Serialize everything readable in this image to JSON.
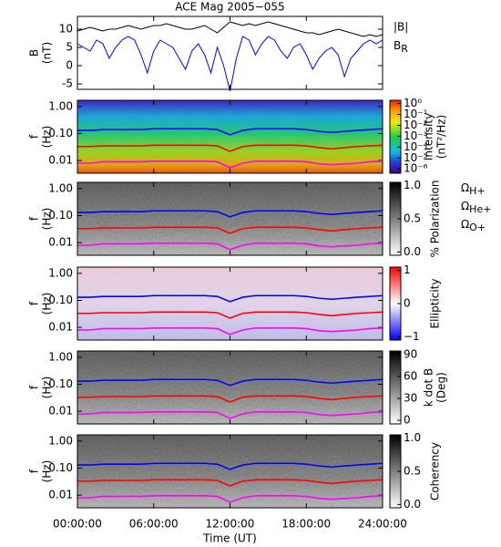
{
  "chart_data": [
    {
      "type": "line",
      "title": "ACE Mag 2005−055",
      "ylabel": [
        "B",
        "(nT)"
      ],
      "xlim": [
        0,
        24
      ],
      "xticks": [
        0,
        6,
        12,
        18,
        24
      ],
      "ylim": [
        -6.5,
        13.5
      ],
      "yticks": [
        -5,
        0,
        5,
        10
      ],
      "log_y": false,
      "x": [
        0,
        0.5,
        1,
        1.5,
        2,
        2.5,
        3,
        3.5,
        4,
        4.5,
        5,
        5.5,
        6,
        6.5,
        7,
        7.5,
        8,
        8.5,
        9,
        9.5,
        10,
        10.5,
        11,
        11.5,
        12,
        12.5,
        13,
        13.5,
        14,
        14.5,
        15,
        15.5,
        16,
        16.5,
        17,
        17.5,
        18,
        18.5,
        19,
        19.5,
        20,
        20.5,
        21,
        21.5,
        22,
        22.5,
        23,
        23.5,
        24
      ],
      "series": [
        {
          "name": "|B|",
          "color": "#000000",
          "values": [
            9.5,
            10,
            10.5,
            10,
            9.5,
            10,
            10,
            10.5,
            11,
            10.5,
            10,
            10.5,
            11,
            11,
            11.5,
            11,
            10.5,
            10,
            10,
            10.5,
            11,
            10,
            9,
            10.5,
            12,
            11.5,
            11,
            11.5,
            11,
            11.5,
            12,
            11.5,
            11,
            10.5,
            10,
            9.5,
            9,
            9,
            8.5,
            9,
            9.5,
            10,
            9.5,
            9,
            8.5,
            8,
            8.5,
            8,
            8.5
          ]
        },
        {
          "name": "BR",
          "color": "#0000ff",
          "values": [
            6,
            5,
            4,
            7,
            6,
            2,
            5,
            7,
            8,
            7,
            3,
            -2,
            4,
            7,
            6,
            5,
            2,
            -1,
            4,
            6,
            3,
            -2,
            5,
            0,
            -7,
            2,
            8,
            7,
            3,
            6,
            8,
            7,
            4,
            2,
            5,
            6,
            3,
            -1,
            2,
            4,
            5,
            3,
            -3,
            2,
            4,
            6,
            7,
            6,
            7
          ]
        }
      ]
    },
    {
      "type": "spectrogram",
      "colormap": "rainbow",
      "ylabel": [
        "f",
        "(Hz)"
      ],
      "xlim": [
        0,
        24
      ],
      "xticks": [
        0,
        6,
        12,
        18,
        24
      ],
      "ylim": [
        0.0034,
        1.7
      ],
      "log_y": true,
      "yticks": [
        {
          "value": 1,
          "label": "1.00"
        },
        {
          "value": 0.1,
          "label": "0.10"
        },
        {
          "value": 0.01,
          "label": "0.01"
        }
      ],
      "colorbar": {
        "label": [
          "Intensity",
          "(nT²/Hz)"
        ],
        "log": true,
        "lim": [
          4e-07,
          2
        ],
        "ticks": [
          {
            "value": 1,
            "label": "10⁰"
          },
          {
            "value": 0.1,
            "label": "10⁻¹"
          },
          {
            "value": 0.01,
            "label": "10⁻²"
          },
          {
            "value": 0.001,
            "label": "10⁻³"
          },
          {
            "value": 0.0001,
            "label": "10⁻⁴"
          },
          {
            "value": 1e-05,
            "label": "10⁻⁵"
          },
          {
            "value": 1e-06,
            "label": "10⁻⁶"
          }
        ]
      },
      "x": [
        0,
        1,
        2,
        3,
        4,
        5,
        6,
        7,
        8,
        9,
        10,
        11,
        12,
        13,
        14,
        15,
        16,
        17,
        18,
        19,
        20,
        21,
        22,
        23,
        24
      ],
      "series": [
        {
          "name": "ΩH+",
          "color": "#0000ff",
          "values": [
            0.13,
            0.13,
            0.14,
            0.14,
            0.14,
            0.14,
            0.15,
            0.15,
            0.15,
            0.15,
            0.15,
            0.14,
            0.09,
            0.13,
            0.15,
            0.15,
            0.15,
            0.15,
            0.14,
            0.12,
            0.11,
            0.12,
            0.13,
            0.14,
            0.15
          ]
        },
        {
          "name": "ΩHe+",
          "color": "#ff0000",
          "values": [
            0.033,
            0.033,
            0.035,
            0.035,
            0.035,
            0.035,
            0.037,
            0.037,
            0.037,
            0.037,
            0.037,
            0.035,
            0.022,
            0.033,
            0.037,
            0.037,
            0.037,
            0.037,
            0.035,
            0.03,
            0.027,
            0.03,
            0.033,
            0.035,
            0.037
          ]
        },
        {
          "name": "ΩO+",
          "color": "#ff00ff",
          "values": [
            0.008,
            0.008,
            0.009,
            0.009,
            0.009,
            0.009,
            0.0095,
            0.0095,
            0.0095,
            0.0095,
            0.0095,
            0.009,
            0.0055,
            0.008,
            0.0095,
            0.0095,
            0.0095,
            0.0095,
            0.009,
            0.0075,
            0.007,
            0.0075,
            0.008,
            0.009,
            0.0095
          ]
        }
      ]
    },
    {
      "type": "spectrogram",
      "colormap": "gray",
      "ylabel": [
        "f",
        "(Hz)"
      ],
      "xlim": [
        0,
        24
      ],
      "xticks": [
        0,
        6,
        12,
        18,
        24
      ],
      "ylim": [
        0.0034,
        1.7
      ],
      "log_y": true,
      "yticks": [
        {
          "value": 1,
          "label": "1.00"
        },
        {
          "value": 0.1,
          "label": "0.10"
        },
        {
          "value": 0.01,
          "label": "0.01"
        }
      ],
      "colorbar": {
        "label": [
          "% Polarization"
        ],
        "log": false,
        "lim": [
          -0.05,
          1.05
        ],
        "ticks": [
          {
            "value": 1,
            "label": "1.0"
          },
          {
            "value": 0.5,
            "label": "0.5"
          },
          {
            "value": 0,
            "label": "0.0"
          }
        ]
      },
      "x": [
        0,
        1,
        2,
        3,
        4,
        5,
        6,
        7,
        8,
        9,
        10,
        11,
        12,
        13,
        14,
        15,
        16,
        17,
        18,
        19,
        20,
        21,
        22,
        23,
        24
      ],
      "series": [
        {
          "color": "#0000ff",
          "values": [
            0.13,
            0.13,
            0.14,
            0.14,
            0.14,
            0.14,
            0.15,
            0.15,
            0.15,
            0.15,
            0.15,
            0.14,
            0.09,
            0.13,
            0.15,
            0.15,
            0.15,
            0.15,
            0.14,
            0.12,
            0.11,
            0.12,
            0.13,
            0.14,
            0.15
          ]
        },
        {
          "color": "#ff0000",
          "values": [
            0.033,
            0.033,
            0.035,
            0.035,
            0.035,
            0.035,
            0.037,
            0.037,
            0.037,
            0.037,
            0.037,
            0.035,
            0.022,
            0.033,
            0.037,
            0.037,
            0.037,
            0.037,
            0.035,
            0.03,
            0.027,
            0.03,
            0.033,
            0.035,
            0.037
          ]
        },
        {
          "color": "#ff00ff",
          "values": [
            0.008,
            0.008,
            0.009,
            0.009,
            0.009,
            0.009,
            0.0095,
            0.0095,
            0.0095,
            0.0095,
            0.0095,
            0.009,
            0.0055,
            0.008,
            0.0095,
            0.0095,
            0.0095,
            0.0095,
            0.009,
            0.0075,
            0.007,
            0.0075,
            0.008,
            0.009,
            0.0095
          ]
        }
      ]
    },
    {
      "type": "spectrogram",
      "colormap": "bwr",
      "ylabel": [
        "f",
        "(Hz)"
      ],
      "xlim": [
        0,
        24
      ],
      "xticks": [
        0,
        6,
        12,
        18,
        24
      ],
      "ylim": [
        0.0034,
        1.7
      ],
      "log_y": true,
      "yticks": [
        {
          "value": 1,
          "label": "1.00"
        },
        {
          "value": 0.1,
          "label": "0.10"
        },
        {
          "value": 0.01,
          "label": "0.01"
        }
      ],
      "colorbar": {
        "label": [
          "Ellipticity"
        ],
        "log": false,
        "lim": [
          -1.1,
          1.1
        ],
        "ticks": [
          {
            "value": 1,
            "label": "1"
          },
          {
            "value": 0,
            "label": "0"
          },
          {
            "value": -1,
            "label": "−1"
          }
        ]
      },
      "x": [
        0,
        1,
        2,
        3,
        4,
        5,
        6,
        7,
        8,
        9,
        10,
        11,
        12,
        13,
        14,
        15,
        16,
        17,
        18,
        19,
        20,
        21,
        22,
        23,
        24
      ],
      "series": [
        {
          "color": "#0000ff",
          "values": [
            0.13,
            0.13,
            0.14,
            0.14,
            0.14,
            0.14,
            0.15,
            0.15,
            0.15,
            0.15,
            0.15,
            0.14,
            0.09,
            0.13,
            0.15,
            0.15,
            0.15,
            0.15,
            0.14,
            0.12,
            0.11,
            0.12,
            0.13,
            0.14,
            0.15
          ]
        },
        {
          "color": "#ff0000",
          "values": [
            0.033,
            0.033,
            0.035,
            0.035,
            0.035,
            0.035,
            0.037,
            0.037,
            0.037,
            0.037,
            0.037,
            0.035,
            0.022,
            0.033,
            0.037,
            0.037,
            0.037,
            0.037,
            0.035,
            0.03,
            0.027,
            0.03,
            0.033,
            0.035,
            0.037
          ]
        },
        {
          "color": "#ff00ff",
          "values": [
            0.008,
            0.008,
            0.009,
            0.009,
            0.009,
            0.009,
            0.0095,
            0.0095,
            0.0095,
            0.0095,
            0.0095,
            0.009,
            0.0055,
            0.008,
            0.0095,
            0.0095,
            0.0095,
            0.0095,
            0.009,
            0.0075,
            0.007,
            0.0075,
            0.008,
            0.009,
            0.0095
          ]
        }
      ]
    },
    {
      "type": "spectrogram",
      "colormap": "gray",
      "ylabel": [
        "f",
        "(Hz)"
      ],
      "xlim": [
        0,
        24
      ],
      "xticks": [
        0,
        6,
        12,
        18,
        24
      ],
      "ylim": [
        0.0034,
        1.7
      ],
      "log_y": true,
      "yticks": [
        {
          "value": 1,
          "label": "1.00"
        },
        {
          "value": 0.1,
          "label": "0.10"
        },
        {
          "value": 0.01,
          "label": "0.01"
        }
      ],
      "colorbar": {
        "label": [
          "k dot B",
          "(Deg)"
        ],
        "log": false,
        "lim": [
          -5,
          95
        ],
        "ticks": [
          90,
          60,
          30,
          0
        ]
      },
      "x": [
        0,
        1,
        2,
        3,
        4,
        5,
        6,
        7,
        8,
        9,
        10,
        11,
        12,
        13,
        14,
        15,
        16,
        17,
        18,
        19,
        20,
        21,
        22,
        23,
        24
      ],
      "series": [
        {
          "color": "#0000ff",
          "values": [
            0.13,
            0.13,
            0.14,
            0.14,
            0.14,
            0.14,
            0.15,
            0.15,
            0.15,
            0.15,
            0.15,
            0.14,
            0.09,
            0.13,
            0.15,
            0.15,
            0.15,
            0.15,
            0.14,
            0.12,
            0.11,
            0.12,
            0.13,
            0.14,
            0.15
          ]
        },
        {
          "color": "#ff0000",
          "values": [
            0.033,
            0.033,
            0.035,
            0.035,
            0.035,
            0.035,
            0.037,
            0.037,
            0.037,
            0.037,
            0.037,
            0.035,
            0.022,
            0.033,
            0.037,
            0.037,
            0.037,
            0.037,
            0.035,
            0.03,
            0.027,
            0.03,
            0.033,
            0.035,
            0.037
          ]
        },
        {
          "color": "#ff00ff",
          "values": [
            0.008,
            0.008,
            0.009,
            0.009,
            0.009,
            0.009,
            0.0095,
            0.0095,
            0.0095,
            0.0095,
            0.0095,
            0.009,
            0.0055,
            0.008,
            0.0095,
            0.0095,
            0.0095,
            0.0095,
            0.009,
            0.0075,
            0.007,
            0.0075,
            0.008,
            0.009,
            0.0095
          ]
        }
      ]
    },
    {
      "type": "spectrogram",
      "colormap": "gray",
      "ylabel": [
        "f",
        "(Hz)"
      ],
      "xlabel": "Time (UT)",
      "xlim": [
        0,
        24
      ],
      "xticks": [
        {
          "value": 0,
          "label": "00:00:00"
        },
        {
          "value": 6,
          "label": "06:00:00"
        },
        {
          "value": 12,
          "label": "12:00:00"
        },
        {
          "value": 18,
          "label": "18:00:00"
        },
        {
          "value": 24,
          "label": "24:00:00"
        }
      ],
      "ylim": [
        0.0034,
        1.7
      ],
      "log_y": true,
      "yticks": [
        {
          "value": 1,
          "label": "1.00"
        },
        {
          "value": 0.1,
          "label": "0.10"
        },
        {
          "value": 0.01,
          "label": "0.01"
        }
      ],
      "colorbar": {
        "label": [
          "Coherency"
        ],
        "log": false,
        "lim": [
          -0.05,
          1.05
        ],
        "ticks": [
          {
            "value": 1,
            "label": "1.0"
          },
          {
            "value": 0.5,
            "label": "0.5"
          },
          {
            "value": 0,
            "label": "0.0"
          }
        ]
      },
      "x": [
        0,
        1,
        2,
        3,
        4,
        5,
        6,
        7,
        8,
        9,
        10,
        11,
        12,
        13,
        14,
        15,
        16,
        17,
        18,
        19,
        20,
        21,
        22,
        23,
        24
      ],
      "series": [
        {
          "color": "#0000ff",
          "values": [
            0.13,
            0.13,
            0.14,
            0.14,
            0.14,
            0.14,
            0.15,
            0.15,
            0.15,
            0.15,
            0.15,
            0.14,
            0.09,
            0.13,
            0.15,
            0.15,
            0.15,
            0.15,
            0.14,
            0.12,
            0.11,
            0.12,
            0.13,
            0.14,
            0.15
          ]
        },
        {
          "color": "#ff0000",
          "values": [
            0.033,
            0.033,
            0.035,
            0.035,
            0.035,
            0.035,
            0.037,
            0.037,
            0.037,
            0.037,
            0.037,
            0.035,
            0.022,
            0.033,
            0.037,
            0.037,
            0.037,
            0.037,
            0.035,
            0.03,
            0.027,
            0.03,
            0.033,
            0.035,
            0.037
          ]
        },
        {
          "color": "#ff00ff",
          "values": [
            0.008,
            0.008,
            0.009,
            0.009,
            0.009,
            0.009,
            0.0095,
            0.0095,
            0.0095,
            0.0095,
            0.0095,
            0.009,
            0.0055,
            0.008,
            0.0095,
            0.0095,
            0.0095,
            0.0095,
            0.009,
            0.0075,
            0.007,
            0.0075,
            0.008,
            0.009,
            0.0095
          ]
        }
      ]
    }
  ]
}
